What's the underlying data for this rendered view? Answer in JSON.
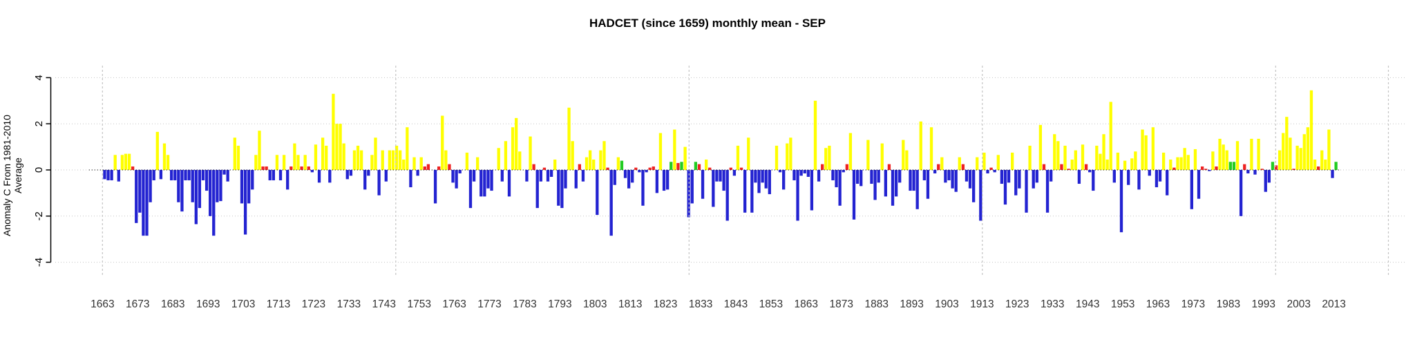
{
  "page_title": "HADCET monthly mean anomaly chart",
  "chart_data": {
    "type": "bar",
    "title": "HADCET (since 1659) monthly mean - SEP",
    "ylabel": "Anomaly C From 1981-2010 Average",
    "xlabel": "",
    "ylim": [
      -4.6,
      4.6
    ],
    "yticks": [
      4,
      2,
      0,
      -2,
      -4
    ],
    "xtick_labels": [
      "1663",
      "1673",
      "1683",
      "1693",
      "1703",
      "1713",
      "1723",
      "1733",
      "1743",
      "1753",
      "1763",
      "1773",
      "1783",
      "1793",
      "1803",
      "1813",
      "1823",
      "1833",
      "1843",
      "1853",
      "1863",
      "1873",
      "1883",
      "1893",
      "1903",
      "1913",
      "1923",
      "1933",
      "1943",
      "1953",
      "1963",
      "1973",
      "1983",
      "1993",
      "2003",
      "2013"
    ],
    "grid": "dotted",
    "legend_position": "none",
    "start_year": 1659,
    "end_year": 2013,
    "values": [
      0,
      0,
      0,
      0,
      -0.4,
      -0.45,
      -0.45,
      0.65,
      -0.5,
      0.65,
      0.7,
      0.7,
      0.15,
      -2.3,
      -1.85,
      -2.85,
      -2.85,
      -1.4,
      -0.45,
      1.65,
      -0.4,
      1.15,
      0.65,
      -0.45,
      -0.45,
      -1.4,
      -1.8,
      -0.45,
      -0.45,
      -1.4,
      -2.35,
      -1.65,
      -0.45,
      -0.9,
      -2.0,
      -2.85,
      -1.4,
      -1.35,
      -0.2,
      -0.5,
      0,
      1.4,
      1.05,
      -1.45,
      -2.8,
      -1.45,
      -0.85,
      0.65,
      1.7,
      0.15,
      0.15,
      -0.45,
      -0.45,
      0.65,
      -0.45,
      0.65,
      -0.85,
      0.15,
      1.15,
      0.65,
      0.15,
      0.65,
      0.15,
      -0.1,
      1.1,
      -0.55,
      1.4,
      1.05,
      -0.55,
      3.3,
      2.0,
      2.0,
      1.15,
      -0.4,
      -0.25,
      0.85,
      1.05,
      0.85,
      -0.85,
      -0.25,
      0.65,
      1.4,
      -1.1,
      0.85,
      -0.5,
      0.85,
      0.85,
      1.05,
      0.85,
      0.45,
      1.85,
      -0.75,
      0.55,
      -0.25,
      0.55,
      0.15,
      0.25,
      0,
      -1.45,
      0.15,
      2.35,
      0.85,
      0.25,
      -0.55,
      -0.8,
      -0.15,
      0,
      0.75,
      -1.65,
      -0.5,
      0.55,
      -1.15,
      -1.15,
      -0.8,
      -0.9,
      0,
      0.95,
      -0.5,
      1.25,
      -1.15,
      1.85,
      2.25,
      0.8,
      0,
      -0.5,
      1.45,
      0.25,
      -1.65,
      -0.5,
      0.1,
      -0.5,
      -0.3,
      0.45,
      -1.55,
      -1.65,
      -0.8,
      2.7,
      1.25,
      -0.8,
      0.25,
      -0.5,
      0.55,
      0.85,
      0.45,
      -1.95,
      0.85,
      1.25,
      0.1,
      -2.85,
      -0.65,
      0.55,
      0.4,
      -0.35,
      -0.8,
      -0.55,
      0.1,
      -0.1,
      -1.55,
      -0.1,
      0.1,
      0.15,
      -1.0,
      1.6,
      -0.9,
      -0.85,
      0.35,
      1.75,
      0.3,
      0.35,
      1.0,
      -2.05,
      -1.45,
      0.35,
      0.25,
      -1.25,
      0.45,
      0.1,
      -1.6,
      -0.5,
      -0.5,
      -0.9,
      -2.2,
      0.1,
      -0.25,
      1.05,
      0.1,
      -1.85,
      1.4,
      -1.85,
      -0.55,
      -1.0,
      -0.55,
      -0.8,
      -1.05,
      0,
      1.05,
      -0.1,
      -0.85,
      1.15,
      1.4,
      -0.45,
      -2.2,
      -0.25,
      -0.15,
      -0.3,
      -1.75,
      3.0,
      -0.5,
      0.25,
      0.95,
      1.05,
      -0.45,
      -0.75,
      -1.55,
      -0.1,
      0.25,
      1.6,
      -2.15,
      -0.6,
      -0.7,
      0,
      1.3,
      -0.6,
      -1.3,
      -0.55,
      1.15,
      -1.15,
      0.25,
      -1.55,
      -1.15,
      -0.55,
      1.3,
      0.85,
      -0.9,
      -0.9,
      -1.7,
      2.1,
      -0.45,
      -1.25,
      1.85,
      -0.15,
      0.25,
      0.55,
      -0.55,
      -0.45,
      -0.8,
      -0.95,
      0.55,
      0.25,
      -0.5,
      -0.8,
      -1.4,
      0.55,
      -2.2,
      0.75,
      -0.15,
      0.1,
      -0.1,
      0.65,
      -0.6,
      -1.5,
      -0.55,
      0.75,
      -1.1,
      -0.8,
      0,
      -1.85,
      1.05,
      -0.8,
      -0.55,
      1.95,
      0.25,
      -1.85,
      -0.5,
      1.55,
      1.25,
      0.25,
      1.05,
      0.05,
      0.45,
      0.85,
      -0.6,
      1.1,
      0.25,
      -0.1,
      -0.9,
      1.05,
      0.7,
      1.55,
      0.45,
      2.95,
      -0.55,
      0.75,
      -2.7,
      0.4,
      -0.65,
      0.5,
      0.8,
      -0.85,
      1.75,
      1.5,
      -0.25,
      1.85,
      -0.75,
      -0.5,
      0.75,
      -1.1,
      0.45,
      0.1,
      0.55,
      0.55,
      0.95,
      0.65,
      -1.7,
      0.9,
      -1.25,
      0.15,
      0.05,
      -0.05,
      0.8,
      0.15,
      1.35,
      1.1,
      0.85,
      0.35,
      0.35,
      1.25,
      -2.0,
      0.25,
      -0.15,
      1.35,
      -0.2,
      1.35,
      0.05,
      -0.95,
      -0.55,
      0.35,
      0.2,
      0.85,
      1.6,
      2.3,
      1.4,
      0.05,
      1.05,
      0.95,
      1.55,
      1.85,
      3.45,
      0.45,
      0.15,
      0.85,
      0.45,
      1.75,
      -0.35,
      0.35
    ],
    "colors": {
      "positive": "#FFFF00",
      "negative": "#2323D1",
      "red": "#EE2222",
      "green": "#22CC22",
      "gridline": "#C3C3C3",
      "zero_line": "#000000",
      "axis": "#000000",
      "tick_label": "#333333"
    },
    "red_years": [
      1671,
      1708,
      1709,
      1716,
      1719,
      1721,
      1754,
      1755,
      1758,
      1761,
      1785,
      1788,
      1798,
      1806,
      1814,
      1818,
      1819,
      1826,
      1832,
      1835,
      1841,
      1844,
      1867,
      1874,
      1886,
      1900,
      1907,
      1915,
      1930,
      1935,
      1937,
      1942,
      1967,
      1975,
      1976,
      1979,
      1987,
      1992,
      1996,
      2001,
      2008
    ],
    "green_years": [
      1810,
      1824,
      1827,
      1831,
      1983,
      1984,
      1995,
      2013
    ]
  }
}
